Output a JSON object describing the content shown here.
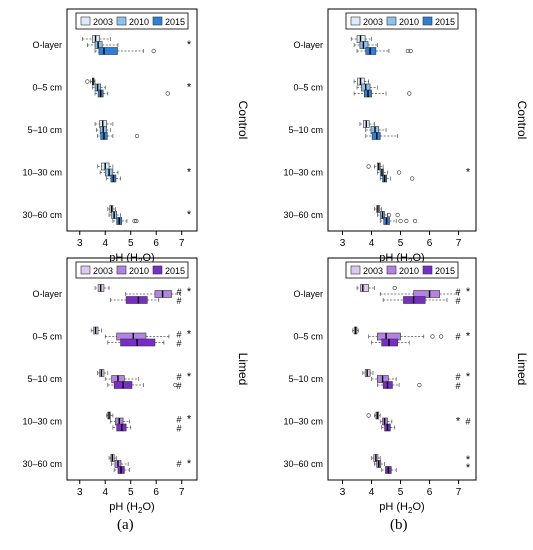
{
  "figure": {
    "caption_a": "(a)",
    "caption_b": "(b)"
  },
  "colors": {
    "control": [
      "#d9ecfa",
      "#8cc3ee",
      "#2c80d8"
    ],
    "limed": [
      "#dcc8f1",
      "#b383e3",
      "#7a2cc9"
    ],
    "axis": "#000000",
    "whisker": "#555555"
  },
  "chart_data": [
    {
      "type": "box",
      "panel": "a",
      "treatment": "Control",
      "legend": [
        "2003",
        "2010",
        "2015"
      ],
      "xlabel": "pH (H2O)",
      "xlim": [
        2.5,
        7.6
      ],
      "xticks": [
        3,
        4,
        5,
        6,
        7
      ],
      "categories": [
        "O-layer",
        "0–5 cm",
        "5–10 cm",
        "10–30 cm",
        "30–60 cm"
      ],
      "series": [
        {
          "name": "2003",
          "boxes": [
            {
              "min": 3.1,
              "q1": 3.5,
              "med": 3.62,
              "q3": 3.78,
              "max": 4.2,
              "out": []
            },
            {
              "min": 3.42,
              "q1": 3.5,
              "med": 3.52,
              "q3": 3.56,
              "max": 3.6,
              "out": [
                3.3
              ]
            },
            {
              "min": 3.6,
              "q1": 3.78,
              "med": 3.9,
              "q3": 4.05,
              "max": 4.3,
              "out": []
            },
            {
              "min": 3.7,
              "q1": 3.85,
              "med": 4.0,
              "q3": 4.15,
              "max": 4.3,
              "out": []
            },
            {
              "min": 4.1,
              "q1": 4.18,
              "med": 4.25,
              "q3": 4.3,
              "max": 4.4,
              "out": []
            }
          ]
        },
        {
          "name": "2010",
          "boxes": [
            {
              "min": 3.3,
              "q1": 3.6,
              "med": 3.72,
              "q3": 3.88,
              "max": 4.5,
              "out": []
            },
            {
              "min": 3.5,
              "q1": 3.6,
              "med": 3.7,
              "q3": 3.82,
              "max": 4.0,
              "out": []
            },
            {
              "min": 3.65,
              "q1": 3.8,
              "med": 3.92,
              "q3": 4.05,
              "max": 4.2,
              "out": []
            },
            {
              "min": 3.8,
              "q1": 4.0,
              "med": 4.15,
              "q3": 4.3,
              "max": 4.5,
              "out": []
            },
            {
              "min": 4.15,
              "q1": 4.25,
              "med": 4.35,
              "q3": 4.45,
              "max": 4.6,
              "out": []
            }
          ]
        },
        {
          "name": "2015",
          "boxes": [
            {
              "min": 3.6,
              "q1": 3.75,
              "med": 3.95,
              "q3": 4.48,
              "max": 5.5,
              "out": [
                5.9
              ]
            },
            {
              "min": 3.6,
              "q1": 3.72,
              "med": 3.82,
              "q3": 3.92,
              "max": 4.1,
              "out": [
                6.45
              ]
            },
            {
              "min": 3.7,
              "q1": 3.82,
              "med": 3.95,
              "q3": 4.08,
              "max": 4.3,
              "out": [
                5.25
              ]
            },
            {
              "min": 4.05,
              "q1": 4.22,
              "med": 4.32,
              "q3": 4.42,
              "max": 4.6,
              "out": []
            },
            {
              "min": 4.3,
              "q1": 4.45,
              "med": 4.55,
              "q3": 4.65,
              "max": 4.85,
              "out": [
                5.15,
                5.22
              ]
            }
          ]
        }
      ],
      "marks": [
        [
          "*"
        ],
        [
          "*"
        ],
        [],
        [
          "*"
        ],
        [
          "*"
        ]
      ]
    },
    {
      "type": "box",
      "panel": "b",
      "treatment": "Control",
      "legend": [
        "2003",
        "2010",
        "2015"
      ],
      "xlabel": "pH (H2O)",
      "xlim": [
        2.5,
        7.6
      ],
      "xticks": [
        3,
        4,
        5,
        6,
        7
      ],
      "categories": [
        "O-layer",
        "0–5 cm",
        "5–10 cm",
        "10–30 cm",
        "30–60 cm"
      ],
      "series": [
        {
          "name": "2003",
          "boxes": [
            {
              "min": 3.3,
              "q1": 3.5,
              "med": 3.62,
              "q3": 3.78,
              "max": 4.0,
              "out": []
            },
            {
              "min": 3.4,
              "q1": 3.52,
              "med": 3.62,
              "q3": 3.75,
              "max": 3.9,
              "out": []
            },
            {
              "min": 3.6,
              "q1": 3.72,
              "med": 3.82,
              "q3": 3.92,
              "max": 4.1,
              "out": []
            },
            {
              "min": 4.1,
              "q1": 4.2,
              "med": 4.25,
              "q3": 4.3,
              "max": 4.4,
              "out": [
                3.9
              ]
            },
            {
              "min": 4.1,
              "q1": 4.18,
              "med": 4.22,
              "q3": 4.28,
              "max": 4.35,
              "out": []
            }
          ]
        },
        {
          "name": "2010",
          "boxes": [
            {
              "min": 3.4,
              "q1": 3.6,
              "med": 3.72,
              "q3": 3.88,
              "max": 4.2,
              "out": []
            },
            {
              "min": 3.5,
              "q1": 3.65,
              "med": 3.8,
              "q3": 3.95,
              "max": 4.2,
              "out": []
            },
            {
              "min": 3.8,
              "q1": 3.98,
              "med": 4.12,
              "q3": 4.25,
              "max": 4.5,
              "out": []
            },
            {
              "min": 4.2,
              "q1": 4.3,
              "med": 4.36,
              "q3": 4.42,
              "max": 4.55,
              "out": [
                4.95
              ]
            },
            {
              "min": 4.2,
              "q1": 4.3,
              "med": 4.38,
              "q3": 4.45,
              "max": 4.55,
              "out": [
                4.6,
                4.9
              ]
            }
          ]
        },
        {
          "name": "2015",
          "boxes": [
            {
              "min": 3.5,
              "q1": 3.8,
              "med": 3.95,
              "q3": 4.15,
              "max": 4.6,
              "out": [
                5.25,
                5.35
              ]
            },
            {
              "min": 3.4,
              "q1": 3.75,
              "med": 3.88,
              "q3": 4.0,
              "max": 4.5,
              "out": [
                5.3
              ]
            },
            {
              "min": 3.8,
              "q1": 4.02,
              "med": 4.18,
              "q3": 4.3,
              "max": 4.9,
              "out": []
            },
            {
              "min": 4.3,
              "q1": 4.38,
              "med": 4.45,
              "q3": 4.52,
              "max": 4.65,
              "out": [
                5.4
              ]
            },
            {
              "min": 4.3,
              "q1": 4.42,
              "med": 4.52,
              "q3": 4.62,
              "max": 4.85,
              "out": [
                5.0,
                5.2,
                5.5
              ]
            }
          ]
        }
      ],
      "marks": [
        [],
        [],
        [],
        [
          "*"
        ],
        []
      ]
    },
    {
      "type": "box",
      "panel": "a",
      "treatment": "Limed",
      "legend": [
        "2003",
        "2010",
        "2015"
      ],
      "xlabel": "pH (H2O)",
      "xlim": [
        2.5,
        7.6
      ],
      "xticks": [
        3,
        4,
        5,
        6,
        7
      ],
      "categories": [
        "O-layer",
        "0–5 cm",
        "5–10 cm",
        "10–30 cm",
        "30–60 cm"
      ],
      "series": [
        {
          "name": "2003",
          "boxes": [
            {
              "min": 3.6,
              "q1": 3.72,
              "med": 3.82,
              "q3": 3.95,
              "max": 4.15,
              "out": []
            },
            {
              "min": 3.45,
              "q1": 3.55,
              "med": 3.62,
              "q3": 3.72,
              "max": 3.85,
              "out": []
            },
            {
              "min": 3.7,
              "q1": 3.78,
              "med": 3.85,
              "q3": 3.95,
              "max": 4.1,
              "out": []
            },
            {
              "min": 4.05,
              "q1": 4.1,
              "med": 4.15,
              "q3": 4.2,
              "max": 4.3,
              "out": []
            },
            {
              "min": 4.15,
              "q1": 4.22,
              "med": 4.28,
              "q3": 4.35,
              "max": 4.45,
              "out": []
            }
          ]
        },
        {
          "name": "2010",
          "boxes": [
            {
              "min": 4.8,
              "q1": 5.95,
              "med": 6.25,
              "q3": 6.6,
              "max": 6.95,
              "out": []
            },
            {
              "min": 4.0,
              "q1": 4.45,
              "med": 5.1,
              "q3": 5.6,
              "max": 6.5,
              "out": []
            },
            {
              "min": 4.0,
              "q1": 4.25,
              "med": 4.5,
              "q3": 4.75,
              "max": 5.3,
              "out": []
            },
            {
              "min": 4.2,
              "q1": 4.4,
              "med": 4.55,
              "q3": 4.7,
              "max": 4.95,
              "out": []
            },
            {
              "min": 4.25,
              "q1": 4.38,
              "med": 4.5,
              "q3": 4.62,
              "max": 4.9,
              "out": []
            }
          ]
        },
        {
          "name": "2015",
          "boxes": [
            {
              "min": 4.2,
              "q1": 4.82,
              "med": 5.3,
              "q3": 5.65,
              "max": 6.1,
              "out": []
            },
            {
              "min": 4.1,
              "q1": 4.6,
              "med": 5.25,
              "q3": 5.95,
              "max": 6.3,
              "out": []
            },
            {
              "min": 4.1,
              "q1": 4.35,
              "med": 4.7,
              "q3": 5.05,
              "max": 5.5,
              "out": [
                6.75
              ]
            },
            {
              "min": 4.3,
              "q1": 4.45,
              "med": 4.65,
              "q3": 4.82,
              "max": 5.0,
              "out": []
            },
            {
              "min": 4.35,
              "q1": 4.5,
              "med": 4.62,
              "q3": 4.75,
              "max": 4.95,
              "out": []
            }
          ]
        }
      ],
      "marks": [
        [
          "#",
          "*",
          "#"
        ],
        [
          "#",
          "*",
          "#"
        ],
        [
          "#",
          "*",
          "#"
        ],
        [
          "#",
          "*",
          "#"
        ],
        [
          "#",
          "*"
        ]
      ]
    },
    {
      "type": "box",
      "panel": "b",
      "treatment": "Limed",
      "legend": [
        "2003",
        "2010",
        "2015"
      ],
      "xlabel": "pH (H2O)",
      "xlim": [
        2.5,
        7.6
      ],
      "xticks": [
        3,
        4,
        5,
        6,
        7
      ],
      "categories": [
        "O-layer",
        "0–5 cm",
        "5–10 cm",
        "10–30 cm",
        "30–60 cm"
      ],
      "series": [
        {
          "name": "2003",
          "boxes": [
            {
              "min": 3.5,
              "q1": 3.62,
              "med": 3.7,
              "q3": 3.9,
              "max": 4.1,
              "out": [
                4.8
              ]
            },
            {
              "min": 3.35,
              "q1": 3.4,
              "med": 3.45,
              "q3": 3.5,
              "max": 3.55,
              "out": []
            },
            {
              "min": 3.7,
              "q1": 3.78,
              "med": 3.85,
              "q3": 3.95,
              "max": 4.05,
              "out": []
            },
            {
              "min": 4.1,
              "q1": 4.15,
              "med": 4.2,
              "q3": 4.25,
              "max": 4.3,
              "out": [
                3.9
              ]
            },
            {
              "min": 4.0,
              "q1": 4.08,
              "med": 4.15,
              "q3": 4.22,
              "max": 4.3,
              "out": []
            }
          ]
        },
        {
          "name": "2010",
          "boxes": [
            {
              "min": 4.3,
              "q1": 5.45,
              "med": 6.0,
              "q3": 6.35,
              "max": 7.0,
              "out": []
            },
            {
              "min": 3.9,
              "q1": 4.2,
              "med": 4.5,
              "q3": 5.0,
              "max": 5.8,
              "out": [
                6.1,
                6.4
              ]
            },
            {
              "min": 4.0,
              "q1": 4.2,
              "med": 4.38,
              "q3": 4.58,
              "max": 4.85,
              "out": []
            },
            {
              "min": 4.3,
              "q1": 4.38,
              "med": 4.45,
              "q3": 4.55,
              "max": 4.7,
              "out": []
            },
            {
              "min": 4.1,
              "q1": 4.18,
              "med": 4.25,
              "q3": 4.32,
              "max": 4.45,
              "out": []
            }
          ]
        },
        {
          "name": "2015",
          "boxes": [
            {
              "min": 4.4,
              "q1": 5.1,
              "med": 5.45,
              "q3": 5.85,
              "max": 6.6,
              "out": []
            },
            {
              "min": 4.0,
              "q1": 4.35,
              "med": 4.6,
              "q3": 4.9,
              "max": 5.3,
              "out": []
            },
            {
              "min": 4.2,
              "q1": 4.4,
              "med": 4.55,
              "q3": 4.72,
              "max": 4.95,
              "out": [
                5.65
              ]
            },
            {
              "min": 4.35,
              "q1": 4.45,
              "med": 4.55,
              "q3": 4.65,
              "max": 4.8,
              "out": []
            },
            {
              "min": 4.35,
              "q1": 4.48,
              "med": 4.58,
              "q3": 4.68,
              "max": 4.85,
              "out": []
            }
          ]
        }
      ],
      "marks": [
        [
          "#",
          "*",
          "#"
        ],
        [
          "#",
          "*"
        ],
        [
          "#",
          "*",
          "#"
        ],
        [
          "*",
          "#"
        ],
        [
          "*",
          "*"
        ]
      ]
    }
  ]
}
